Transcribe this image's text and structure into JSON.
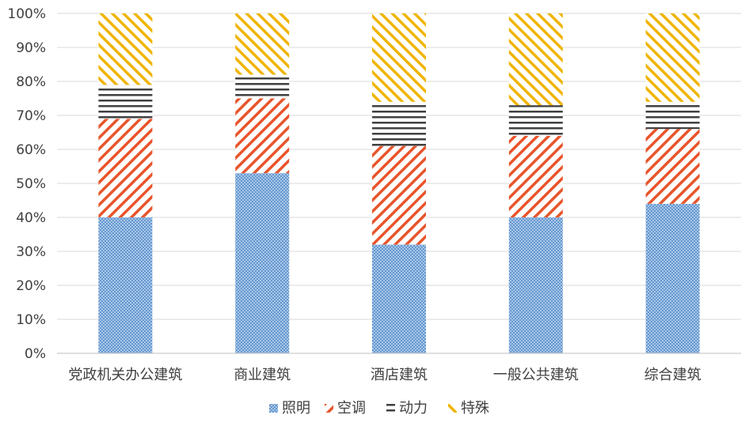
{
  "chart_data": {
    "type": "bar",
    "stacked": true,
    "percent": true,
    "categories": [
      "党政机关办公建筑",
      "商业建筑",
      "酒店建筑",
      "一般公共建筑",
      "综合建筑"
    ],
    "series": [
      {
        "name": "照明",
        "values": [
          40,
          53,
          32,
          40,
          44
        ],
        "color": "#5b9bd5",
        "pattern": "dots"
      },
      {
        "name": "空调",
        "values": [
          29,
          22,
          29,
          24,
          22
        ],
        "color": "#e8542a",
        "pattern": "diagonal-up"
      },
      {
        "name": "动力",
        "values": [
          10,
          7,
          13,
          9,
          8
        ],
        "color": "#404040",
        "pattern": "horizontal"
      },
      {
        "name": "特殊",
        "values": [
          21,
          18,
          26,
          27,
          26
        ],
        "color": "#f0b400",
        "pattern": "diagonal-down"
      }
    ],
    "yticks": [
      "0%",
      "10%",
      "20%",
      "30%",
      "40%",
      "50%",
      "60%",
      "70%",
      "80%",
      "90%",
      "100%"
    ],
    "ylim": [
      0,
      100
    ],
    "grid": true,
    "legend_position": "bottom"
  }
}
